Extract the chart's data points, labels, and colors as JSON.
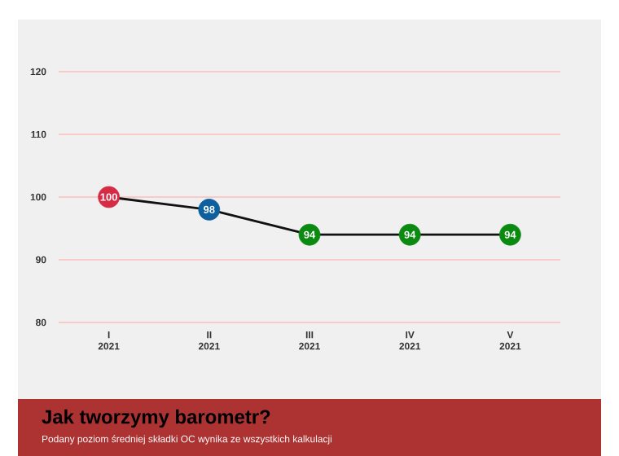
{
  "chart_data": {
    "type": "line",
    "categories": [
      "I 2021",
      "II 2021",
      "III 2021",
      "IV 2021",
      "V 2021"
    ],
    "values": [
      100,
      98,
      94,
      94,
      94
    ],
    "colors": [
      "#d62b45",
      "#0d5f9e",
      "#0b8a12",
      "#0b8a12",
      "#0b8a12"
    ],
    "color": "#111111",
    "marker": "circle",
    "data_labels": true,
    "grid": "y",
    "ylim": [
      80,
      120
    ],
    "yticks": [
      80,
      90,
      100,
      110,
      120
    ],
    "annotations": [
      "Jak tworzymy barometr?",
      "Podany poziom średniej składki OC wynika ze wszystkich kalkulacji"
    ]
  }
}
